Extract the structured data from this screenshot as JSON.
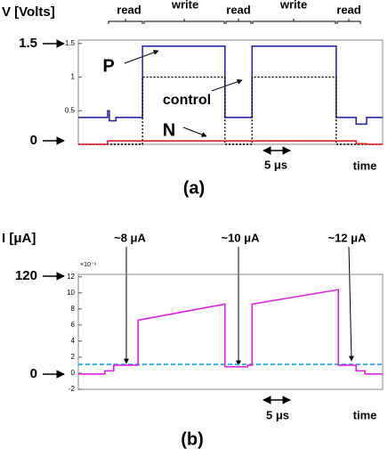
{
  "chart_data": [
    {
      "type": "line",
      "ylabel": "V [Volts]",
      "xlim": [
        0,
        55
      ],
      "ylim": [
        0,
        1.55
      ],
      "yticks": [
        0.5,
        1,
        1.5
      ],
      "series": [
        {
          "name": "P",
          "color": "#2b2ba8",
          "style": "solid",
          "x": [
            0,
            5.3,
            5.3,
            5.6,
            5.6,
            6.8,
            6.8,
            11.6,
            11.6,
            26.5,
            26.5,
            31.4,
            31.4,
            46.6,
            46.6,
            50.2,
            50.2,
            52.1,
            52.1,
            55
          ],
          "values": [
            0.4,
            0.4,
            0.5,
            0.5,
            0.35,
            0.35,
            0.4,
            0.4,
            1.46,
            1.46,
            0.4,
            0.4,
            1.46,
            1.46,
            0.4,
            0.4,
            0.3,
            0.3,
            0.4,
            0.4
          ]
        },
        {
          "name": "control",
          "color": "#000000",
          "style": "dotted",
          "x": [
            0,
            11.6,
            11.6,
            26.5,
            26.5,
            31.4,
            31.4,
            46.6,
            46.6,
            55
          ],
          "values": [
            0,
            0,
            1,
            1,
            0,
            0,
            1,
            1,
            0,
            0
          ]
        },
        {
          "name": "N",
          "color": "#e02020",
          "style": "solid",
          "x": [
            0,
            5.3,
            5.3,
            50.2,
            50.2,
            52.1,
            52.1,
            55
          ],
          "values": [
            0,
            0,
            0.05,
            0.05,
            0.01,
            0.01,
            0,
            0
          ]
        }
      ],
      "annotations": [
        "read",
        "write",
        "read",
        "write",
        "read",
        "1.5",
        "0",
        "5 μs",
        "time",
        "(a)"
      ]
    },
    {
      "type": "line",
      "ylabel": "I [μA]",
      "y_multiplier": "×10⁻⁶",
      "xlim": [
        0,
        55
      ],
      "ylim": [
        -2,
        12.3
      ],
      "yticks": [
        -2,
        0,
        2,
        4,
        6,
        8,
        10,
        12
      ],
      "reference_line": {
        "value": 1.1,
        "color": "#22aadd"
      },
      "series": [
        {
          "name": "I",
          "color": "#e020e0",
          "style": "solid",
          "x": [
            0,
            4.8,
            4.8,
            6.4,
            6.4,
            10.8,
            10.8,
            26.5,
            26.5,
            30.6,
            30.6,
            31.4,
            31.4,
            47,
            47,
            50.2,
            50.2,
            51.8,
            51.8,
            55
          ],
          "values": [
            -0.1,
            -0.1,
            0.3,
            0.3,
            1,
            1,
            6.6,
            8.6,
            0.8,
            0.8,
            1,
            1,
            8.6,
            10.4,
            1,
            1,
            0.3,
            0.3,
            -0.1,
            -0.1
          ]
        }
      ],
      "annotations": [
        "~8 μA",
        "~10 μA",
        "~12 μA",
        "120",
        "0",
        "5 μs",
        "time",
        "(b)"
      ]
    }
  ]
}
